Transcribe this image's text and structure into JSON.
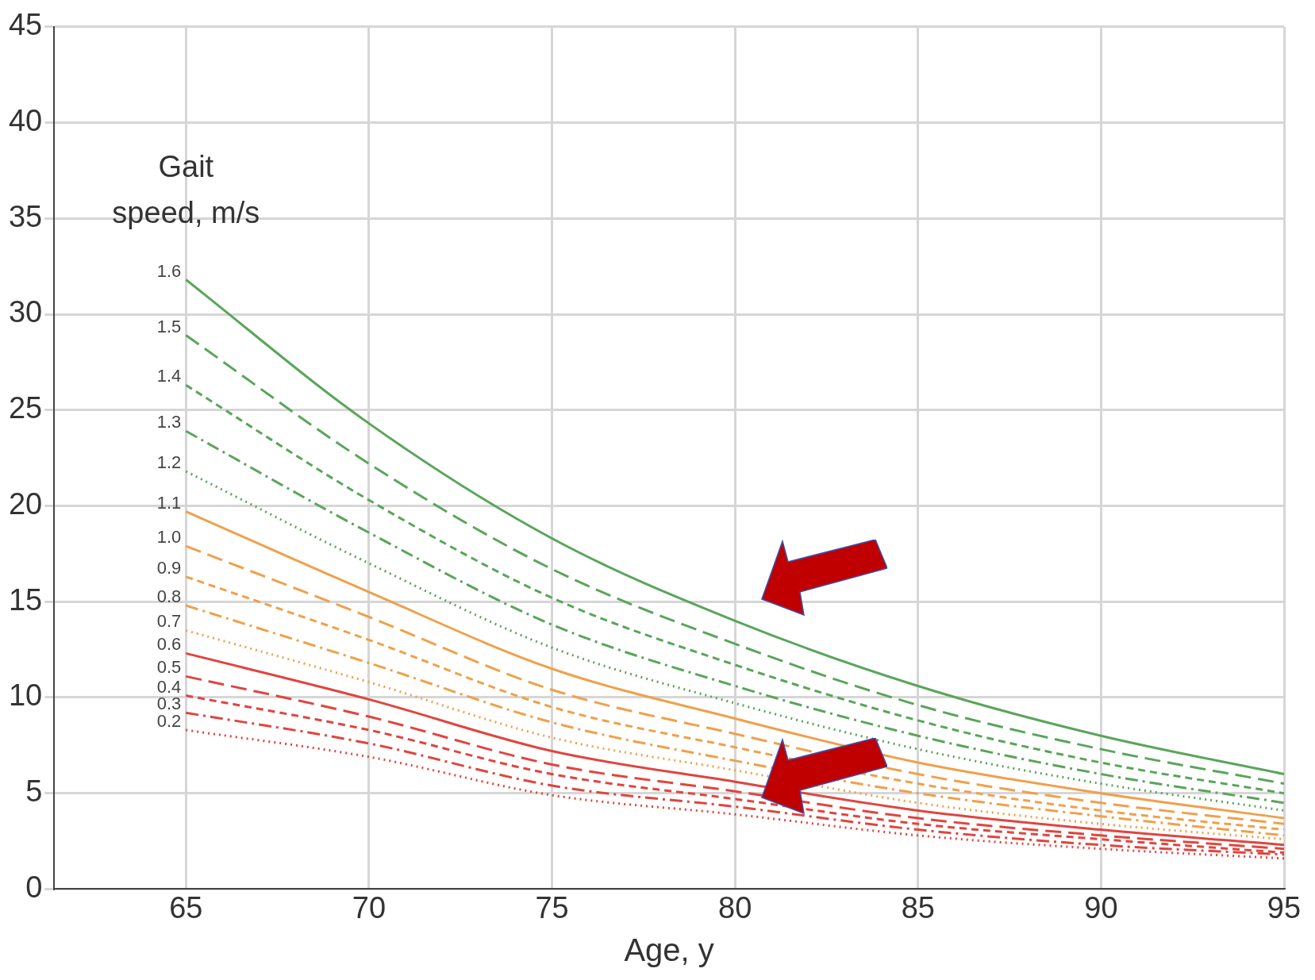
{
  "chart_data": {
    "type": "line",
    "xlabel": "Age, y",
    "legend_title": "Gait speed, m/s",
    "x": [
      65,
      70,
      75,
      80,
      85,
      90,
      95
    ],
    "xlim": [
      61.4,
      95
    ],
    "xticks": [
      65,
      70,
      75,
      80,
      85,
      90,
      95
    ],
    "ylim": [
      0,
      45
    ],
    "yticks": [
      0,
      5,
      10,
      15,
      20,
      25,
      30,
      35,
      40,
      45
    ],
    "grid": true,
    "legend": false,
    "marker": "none",
    "series": [
      {
        "name": "1.6",
        "color": "#5aa55a",
        "line_style": "solid",
        "values": [
          31.8,
          24.3,
          18.3,
          14.0,
          10.6,
          8.0,
          6.0
        ]
      },
      {
        "name": "1.5",
        "color": "#5aa55a",
        "line_style": "longdash",
        "values": [
          28.9,
          22.2,
          16.7,
          12.8,
          9.6,
          7.3,
          5.5
        ]
      },
      {
        "name": "1.4",
        "color": "#5aa55a",
        "line_style": "dashed",
        "values": [
          26.3,
          20.3,
          15.2,
          11.7,
          8.8,
          6.6,
          5.0
        ]
      },
      {
        "name": "1.3",
        "color": "#5aa55a",
        "line_style": "dashdot",
        "values": [
          23.9,
          18.6,
          13.8,
          10.6,
          8.0,
          6.0,
          4.5
        ]
      },
      {
        "name": "1.2",
        "color": "#5aa55a",
        "line_style": "dotted",
        "values": [
          21.8,
          17.0,
          12.6,
          9.7,
          7.3,
          5.5,
          4.1
        ]
      },
      {
        "name": "1.1",
        "color": "#f0a04b",
        "line_style": "solid",
        "values": [
          19.7,
          15.5,
          11.5,
          8.9,
          6.6,
          5.0,
          3.7
        ]
      },
      {
        "name": "1.0",
        "color": "#f0a04b",
        "line_style": "longdash",
        "values": [
          17.9,
          14.2,
          10.4,
          8.1,
          6.0,
          4.5,
          3.4
        ]
      },
      {
        "name": "0.9",
        "color": "#f0a04b",
        "line_style": "dashed",
        "values": [
          16.3,
          13.0,
          9.5,
          7.4,
          5.5,
          4.1,
          3.1
        ]
      },
      {
        "name": "0.8",
        "color": "#f0a04b",
        "line_style": "dashdot",
        "values": [
          14.8,
          11.8,
          8.7,
          6.7,
          5.0,
          3.8,
          2.8
        ]
      },
      {
        "name": "0.7",
        "color": "#f0a04b",
        "line_style": "dotted",
        "values": [
          13.5,
          10.8,
          7.9,
          6.2,
          4.5,
          3.4,
          2.6
        ]
      },
      {
        "name": "0.6",
        "color": "#e0453f",
        "line_style": "solid",
        "values": [
          12.3,
          9.9,
          7.2,
          5.6,
          4.1,
          3.1,
          2.3
        ]
      },
      {
        "name": "0.5",
        "color": "#e0453f",
        "line_style": "longdash",
        "values": [
          11.1,
          9.0,
          6.5,
          5.1,
          3.7,
          2.8,
          2.1
        ]
      },
      {
        "name": "0.4",
        "color": "#e0453f",
        "line_style": "dashed",
        "values": [
          10.1,
          8.3,
          6.0,
          4.7,
          3.4,
          2.6,
          1.9
        ]
      },
      {
        "name": "0.3",
        "color": "#e0453f",
        "line_style": "dashdot",
        "values": [
          9.2,
          7.6,
          5.4,
          4.3,
          3.1,
          2.3,
          1.8
        ]
      },
      {
        "name": "0.2",
        "color": "#e0453f",
        "line_style": "dotted",
        "values": [
          8.3,
          6.9,
          4.9,
          3.9,
          2.8,
          2.1,
          1.6
        ]
      }
    ]
  }
}
